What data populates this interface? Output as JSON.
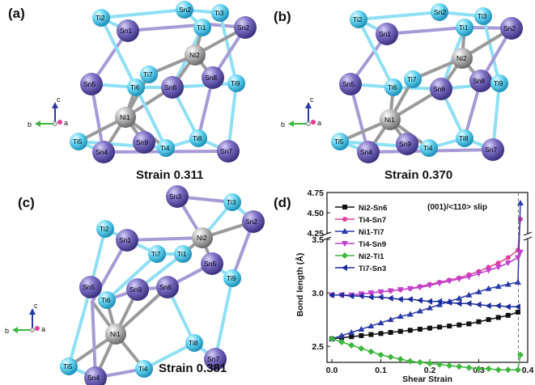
{
  "panels": [
    {
      "label": "(a)",
      "strain_text": "Strain 0.311"
    },
    {
      "label": "(b)",
      "strain_text": "Strain 0.370"
    },
    {
      "label": "(c)",
      "strain_text": "Strain 0.381"
    }
  ],
  "axis_triad": {
    "c": "c",
    "b": "b",
    "a": "a"
  },
  "colors": {
    "ti": "#5fd3f2",
    "sn": "#7a6fc4",
    "ni": "#b9b9b9",
    "bond_ti": "#8fe0f5",
    "bond_sn": "#a79ad6",
    "bond_ni": "#9a9a9a"
  },
  "atoms_a": [
    "Ti2",
    "Sn1",
    "Sn2",
    "Ti1",
    "Ti3",
    "Sn2",
    "Ni2",
    "Sn5",
    "Ti6",
    "Ti7",
    "Sn6",
    "Sn8",
    "Ti9",
    "Ni1",
    "Ti5",
    "Sn4",
    "Sn9",
    "Ti4",
    "Ti8",
    "Sn7"
  ],
  "chart_panel_label": "(d)",
  "chart_data": {
    "type": "line",
    "annotation": "(001)/<110> slip",
    "xlabel": "Shear Strain",
    "ylabel": "Bond length (Å)",
    "xlim": [
      -0.01,
      0.4
    ],
    "ylim_lower": [
      2.35,
      3.5
    ],
    "ylim_upper": [
      4.25,
      4.75
    ],
    "xticks": [
      "0.0",
      "0.1",
      "0.2",
      "0.3",
      "0.4"
    ],
    "yticks_lower": [
      "2.5",
      "3.0",
      "3.5"
    ],
    "yticks_upper": [
      "4.25",
      "4.50",
      "4.75"
    ],
    "dashed_line_x": 0.381,
    "series": [
      {
        "name": "Ni2-Sn6",
        "color": "#111111",
        "marker": "square",
        "x": [
          0,
          0.02,
          0.04,
          0.06,
          0.08,
          0.1,
          0.12,
          0.14,
          0.16,
          0.18,
          0.2,
          0.22,
          0.24,
          0.26,
          0.28,
          0.3,
          0.32,
          0.34,
          0.36,
          0.38
        ],
        "y": [
          2.57,
          2.58,
          2.59,
          2.6,
          2.61,
          2.62,
          2.63,
          2.64,
          2.65,
          2.66,
          2.67,
          2.68,
          2.69,
          2.7,
          2.71,
          2.73,
          2.75,
          2.77,
          2.79,
          2.82
        ]
      },
      {
        "name": "Ti4-Sn7",
        "color": "#e0409a",
        "marker": "circle",
        "x": [
          0,
          0.02,
          0.04,
          0.06,
          0.08,
          0.1,
          0.12,
          0.14,
          0.16,
          0.18,
          0.2,
          0.22,
          0.24,
          0.26,
          0.28,
          0.3,
          0.32,
          0.34,
          0.36,
          0.38,
          0.385
        ],
        "y": [
          2.98,
          2.98,
          2.98,
          2.99,
          3.0,
          3.01,
          3.02,
          3.03,
          3.04,
          3.06,
          3.08,
          3.1,
          3.12,
          3.14,
          3.17,
          3.2,
          3.24,
          3.28,
          3.33,
          3.4,
          4.42
        ]
      },
      {
        "name": "Ni1-Ti7",
        "color": "#2a3aa8",
        "marker": "triangle-up",
        "x": [
          0,
          0.02,
          0.04,
          0.06,
          0.08,
          0.1,
          0.12,
          0.14,
          0.16,
          0.18,
          0.2,
          0.22,
          0.24,
          0.26,
          0.28,
          0.3,
          0.32,
          0.34,
          0.36,
          0.38,
          0.385
        ],
        "y": [
          2.57,
          2.6,
          2.63,
          2.66,
          2.69,
          2.72,
          2.75,
          2.78,
          2.8,
          2.83,
          2.86,
          2.89,
          2.92,
          2.95,
          2.98,
          3.01,
          3.04,
          3.06,
          3.08,
          3.1,
          4.62
        ]
      },
      {
        "name": "Ti4-Sn9",
        "color": "#c040d0",
        "marker": "triangle-down",
        "x": [
          0,
          0.02,
          0.04,
          0.06,
          0.08,
          0.1,
          0.12,
          0.14,
          0.16,
          0.18,
          0.2,
          0.22,
          0.24,
          0.26,
          0.28,
          0.3,
          0.32,
          0.34,
          0.36,
          0.38,
          0.385
        ],
        "y": [
          2.98,
          2.98,
          2.98,
          2.99,
          3.0,
          3.01,
          3.02,
          3.03,
          3.04,
          3.05,
          3.07,
          3.09,
          3.11,
          3.13,
          3.15,
          3.18,
          3.21,
          3.24,
          3.28,
          3.33,
          3.38
        ]
      },
      {
        "name": "Ni2-Ti1",
        "color": "#3cb83c",
        "marker": "diamond",
        "x": [
          0,
          0.02,
          0.04,
          0.06,
          0.08,
          0.1,
          0.12,
          0.14,
          0.16,
          0.18,
          0.2,
          0.22,
          0.24,
          0.26,
          0.28,
          0.3,
          0.32,
          0.34,
          0.36,
          0.38,
          0.385
        ],
        "y": [
          2.57,
          2.54,
          2.51,
          2.48,
          2.45,
          2.42,
          2.4,
          2.38,
          2.36,
          2.35,
          2.34,
          2.33,
          2.32,
          2.31,
          2.3,
          2.29,
          2.29,
          2.28,
          2.28,
          2.28,
          2.42
        ]
      },
      {
        "name": "Ti7-Sn3",
        "color": "#1a2a9a",
        "marker": "triangle-left",
        "x": [
          0,
          0.02,
          0.04,
          0.06,
          0.08,
          0.1,
          0.12,
          0.14,
          0.16,
          0.18,
          0.2,
          0.22,
          0.24,
          0.26,
          0.28,
          0.3,
          0.32,
          0.34,
          0.36,
          0.38
        ],
        "y": [
          2.98,
          2.98,
          2.97,
          2.97,
          2.96,
          2.96,
          2.95,
          2.94,
          2.94,
          2.93,
          2.92,
          2.92,
          2.91,
          2.9,
          2.9,
          2.89,
          2.88,
          2.88,
          2.87,
          2.87
        ]
      }
    ]
  }
}
